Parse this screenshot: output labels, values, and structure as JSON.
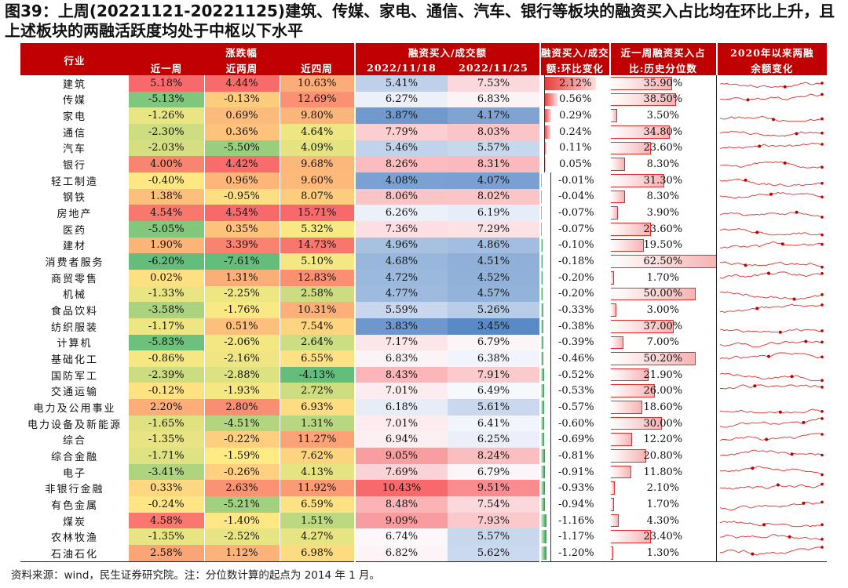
{
  "title": "图39：上周(20221121-20221125)建筑、传媒、家电、通信、汽车、银行等板块的融资买入占比均在环比上升，且上述板块的两融活跃度均处于中枢以下水平",
  "source": "资料来源：wind，民生证券研究院。注：分位数计算的起点为 2014 年 1 月。",
  "header": {
    "industry": "行业",
    "returns_group": "涨跌幅",
    "ret_1w": "近一周",
    "ret_2w": "近两周",
    "ret_4w": "近四周",
    "ratio_group": "融资买入/成交额",
    "ratio_d1": "2022/11/18",
    "ratio_d2": "2022/11/25",
    "chg_line1": "融资买入/成交",
    "chg_line2": "额:环比变化",
    "pct_line1": "近一周融资买入占",
    "pct_line2": "比:历史分位数",
    "spark_line1": "2020年以来两融",
    "spark_line2": "余额变化"
  },
  "colors": {
    "header_bg": "#c00000",
    "pos_bar": "#e83a3a",
    "neg_bar": "#1f9e3b",
    "pct_bar": "#e22d2d",
    "spark_line": "#e22d2d"
  },
  "chart_data": {
    "type": "table",
    "title": "图39：上周(20221121-20221125)建筑、传媒、家电、通信、汽车、银行等板块的融资买入占比均在环比上升，且上述板块的两融活跃度均处于中枢以下水平",
    "columns": [
      "行业",
      "近一周",
      "近两周",
      "近四周",
      "2022/11/18",
      "2022/11/25",
      "融资买入/成交额:环比变化",
      "近一周融资买入占比:历史分位数",
      "2020年以来两融余额变化"
    ],
    "rows": [
      {
        "industry": "建筑",
        "r1": "5.18%",
        "r2": "4.44%",
        "r4": "10.63%",
        "a": "5.41%",
        "b": "7.53%",
        "chg": "2.12%",
        "pct": "35.90%"
      },
      {
        "industry": "传媒",
        "r1": "-5.13%",
        "r2": "-0.13%",
        "r4": "12.69%",
        "a": "6.27%",
        "b": "6.83%",
        "chg": "0.56%",
        "pct": "38.50%"
      },
      {
        "industry": "家电",
        "r1": "-1.26%",
        "r2": "0.69%",
        "r4": "9.80%",
        "a": "3.87%",
        "b": "4.17%",
        "chg": "0.29%",
        "pct": "3.50%"
      },
      {
        "industry": "通信",
        "r1": "-2.30%",
        "r2": "0.36%",
        "r4": "4.64%",
        "a": "7.79%",
        "b": "8.03%",
        "chg": "0.24%",
        "pct": "34.80%"
      },
      {
        "industry": "汽车",
        "r1": "-2.03%",
        "r2": "-5.50%",
        "r4": "4.09%",
        "a": "5.46%",
        "b": "5.57%",
        "chg": "0.11%",
        "pct": "23.60%"
      },
      {
        "industry": "银行",
        "r1": "4.00%",
        "r2": "4.42%",
        "r4": "9.68%",
        "a": "8.26%",
        "b": "8.31%",
        "chg": "0.05%",
        "pct": "8.30%"
      },
      {
        "industry": "轻工制造",
        "r1": "-0.40%",
        "r2": "0.96%",
        "r4": "9.60%",
        "a": "4.08%",
        "b": "4.07%",
        "chg": "-0.01%",
        "pct": "31.30%"
      },
      {
        "industry": "钢铁",
        "r1": "1.38%",
        "r2": "-0.95%",
        "r4": "8.07%",
        "a": "8.06%",
        "b": "8.02%",
        "chg": "-0.04%",
        "pct": "8.30%"
      },
      {
        "industry": "房地产",
        "r1": "4.54%",
        "r2": "4.54%",
        "r4": "15.71%",
        "a": "6.26%",
        "b": "6.19%",
        "chg": "-0.07%",
        "pct": "3.90%"
      },
      {
        "industry": "医药",
        "r1": "-5.05%",
        "r2": "0.35%",
        "r4": "5.32%",
        "a": "7.36%",
        "b": "7.29%",
        "chg": "-0.07%",
        "pct": "23.60%"
      },
      {
        "industry": "建材",
        "r1": "1.90%",
        "r2": "3.39%",
        "r4": "14.73%",
        "a": "4.96%",
        "b": "4.86%",
        "chg": "-0.10%",
        "pct": "19.50%"
      },
      {
        "industry": "消费者服务",
        "r1": "-6.20%",
        "r2": "-7.61%",
        "r4": "5.10%",
        "a": "4.68%",
        "b": "4.51%",
        "chg": "-0.18%",
        "pct": "62.50%"
      },
      {
        "industry": "商贸零售",
        "r1": "0.02%",
        "r2": "1.31%",
        "r4": "12.83%",
        "a": "4.72%",
        "b": "4.52%",
        "chg": "-0.20%",
        "pct": "1.70%"
      },
      {
        "industry": "机械",
        "r1": "-1.33%",
        "r2": "-2.25%",
        "r4": "2.58%",
        "a": "4.77%",
        "b": "4.57%",
        "chg": "-0.20%",
        "pct": "50.00%"
      },
      {
        "industry": "食品饮料",
        "r1": "-3.58%",
        "r2": "-1.76%",
        "r4": "10.31%",
        "a": "5.59%",
        "b": "5.26%",
        "chg": "-0.33%",
        "pct": "3.00%"
      },
      {
        "industry": "纺织服装",
        "r1": "-1.17%",
        "r2": "0.51%",
        "r4": "7.54%",
        "a": "3.83%",
        "b": "3.45%",
        "chg": "-0.38%",
        "pct": "37.00%"
      },
      {
        "industry": "计算机",
        "r1": "-5.83%",
        "r2": "-2.06%",
        "r4": "2.64%",
        "a": "7.17%",
        "b": "6.79%",
        "chg": "-0.39%",
        "pct": "7.00%"
      },
      {
        "industry": "基础化工",
        "r1": "-0.86%",
        "r2": "-2.16%",
        "r4": "6.55%",
        "a": "6.83%",
        "b": "6.38%",
        "chg": "-0.46%",
        "pct": "50.20%"
      },
      {
        "industry": "国防军工",
        "r1": "-2.39%",
        "r2": "-2.88%",
        "r4": "-4.13%",
        "a": "8.43%",
        "b": "7.91%",
        "chg": "-0.52%",
        "pct": "21.90%"
      },
      {
        "industry": "交通运输",
        "r1": "-0.12%",
        "r2": "-1.93%",
        "r4": "2.72%",
        "a": "7.01%",
        "b": "6.49%",
        "chg": "-0.53%",
        "pct": "26.00%"
      },
      {
        "industry": "电力及公用事业",
        "r1": "2.20%",
        "r2": "2.80%",
        "r4": "6.93%",
        "a": "6.18%",
        "b": "5.61%",
        "chg": "-0.57%",
        "pct": "18.60%"
      },
      {
        "industry": "电力设备及新能源",
        "r1": "-1.65%",
        "r2": "-4.51%",
        "r4": "1.31%",
        "a": "7.01%",
        "b": "6.41%",
        "chg": "-0.60%",
        "pct": "30.00%"
      },
      {
        "industry": "综合",
        "r1": "-1.35%",
        "r2": "-0.22%",
        "r4": "11.27%",
        "a": "6.94%",
        "b": "6.25%",
        "chg": "-0.69%",
        "pct": "12.20%"
      },
      {
        "industry": "综合金融",
        "r1": "-1.71%",
        "r2": "-1.59%",
        "r4": "7.62%",
        "a": "9.05%",
        "b": "8.24%",
        "chg": "-0.81%",
        "pct": "20.80%"
      },
      {
        "industry": "电子",
        "r1": "-3.41%",
        "r2": "-0.26%",
        "r4": "4.13%",
        "a": "7.69%",
        "b": "6.79%",
        "chg": "-0.91%",
        "pct": "11.80%"
      },
      {
        "industry": "非银行金融",
        "r1": "0.33%",
        "r2": "2.63%",
        "r4": "11.92%",
        "a": "10.43%",
        "b": "9.51%",
        "chg": "-0.93%",
        "pct": "2.10%"
      },
      {
        "industry": "有色金属",
        "r1": "-0.24%",
        "r2": "-5.21%",
        "r4": "6.59%",
        "a": "8.48%",
        "b": "7.54%",
        "chg": "-0.94%",
        "pct": "1.70%"
      },
      {
        "industry": "煤炭",
        "r1": "4.58%",
        "r2": "-1.40%",
        "r4": "1.51%",
        "a": "9.09%",
        "b": "7.93%",
        "chg": "-1.16%",
        "pct": "4.30%"
      },
      {
        "industry": "农林牧渔",
        "r1": "-1.35%",
        "r2": "-2.52%",
        "r4": "4.27%",
        "a": "6.74%",
        "b": "5.57%",
        "chg": "-1.17%",
        "pct": "23.40%"
      },
      {
        "industry": "石油石化",
        "r1": "2.58%",
        "r2": "1.12%",
        "r4": "6.98%",
        "a": "6.82%",
        "b": "5.62%",
        "chg": "-1.20%",
        "pct": "1.30%"
      }
    ]
  }
}
